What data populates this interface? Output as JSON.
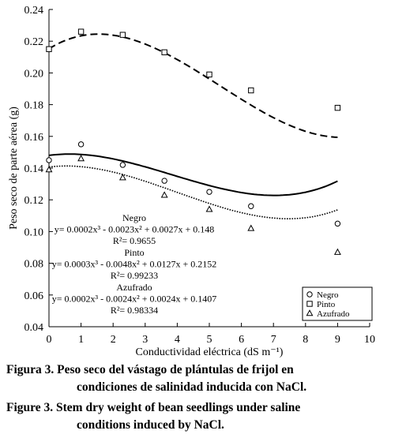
{
  "chart_data": {
    "type": "scatter",
    "xlabel": "Conductividad eléctrica (dS m⁻¹)",
    "ylabel": "Peso seco de parte aérea (g)",
    "xlim": [
      0,
      10
    ],
    "ylim": [
      0.04,
      0.24
    ],
    "x_ticks": [
      "0",
      "1",
      "2",
      "3",
      "4",
      "5",
      "6",
      "7",
      "8",
      "9",
      "10"
    ],
    "y_ticks": [
      "0.04",
      "0.06",
      "0.08",
      "0.10",
      "0.12",
      "0.14",
      "0.16",
      "0.18",
      "0.20",
      "0.22",
      "0.24"
    ],
    "legend_position": "bottom-right",
    "series": [
      {
        "name": "Negro",
        "marker": "circle",
        "line_style": "solid",
        "x": [
          0,
          1,
          2.3,
          3.6,
          5,
          6.3,
          9
        ],
        "y": [
          0.145,
          0.155,
          0.142,
          0.132,
          0.125,
          0.116,
          0.105
        ],
        "fit": {
          "a3": 0.0002,
          "a2": -0.0023,
          "a1": 0.0027,
          "a0": 0.148
        },
        "equation": "y= 0.0002x³ - 0.0023x² + 0.0027x + 0.148",
        "r2": "R²= 0.9655"
      },
      {
        "name": "Pinto",
        "marker": "square",
        "line_style": "dashed",
        "x": [
          0,
          1,
          2.3,
          3.6,
          5,
          6.3,
          9
        ],
        "y": [
          0.215,
          0.226,
          0.224,
          0.213,
          0.199,
          0.189,
          0.178
        ],
        "fit": {
          "a3": 0.0003,
          "a2": -0.0048,
          "a1": 0.0127,
          "a0": 0.2152
        },
        "equation": "y= 0.0003x³ - 0.0048x² + 0.0127x + 0.2152",
        "r2": "R²= 0.99233"
      },
      {
        "name": "Azufrado",
        "marker": "triangle",
        "line_style": "dotted",
        "x": [
          0,
          1,
          2.3,
          3.6,
          5,
          6.3,
          9
        ],
        "y": [
          0.139,
          0.146,
          0.134,
          0.123,
          0.114,
          0.102,
          0.087
        ],
        "fit": {
          "a3": 0.0002,
          "a2": -0.0024,
          "a1": 0.0024,
          "a0": 0.1407
        },
        "equation": "y= 0.0002x³ - 0.0024x² + 0.0024x + 0.1407",
        "r2": "R²= 0.98334"
      }
    ]
  },
  "caption": {
    "es_line1": "Figura 3. Peso seco del vástago de plántulas de frijol en",
    "es_line2": "condiciones de salinidad inducida con NaCl.",
    "en_line1": "Figure 3. Stem dry weight of bean seedlings under saline",
    "en_line2": "conditions induced by NaCl."
  }
}
